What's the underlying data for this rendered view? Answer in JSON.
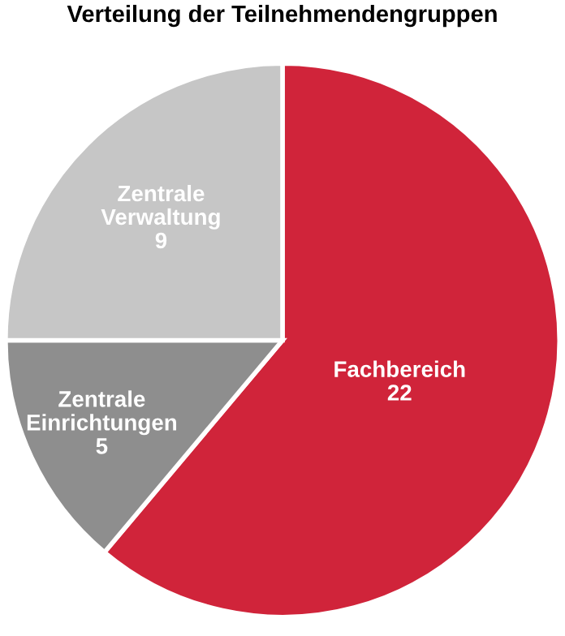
{
  "chart_data": {
    "type": "pie",
    "title": "Verteilung der Teilnehmendengruppen",
    "categories": [
      "Fachbereich",
      "Zentrale Einrichtungen",
      "Zentrale Verwaltung"
    ],
    "values": [
      22,
      5,
      9
    ],
    "colors": [
      "#d0243a",
      "#8e8e8e",
      "#c6c6c6"
    ],
    "data_labels": true,
    "legend": false
  }
}
